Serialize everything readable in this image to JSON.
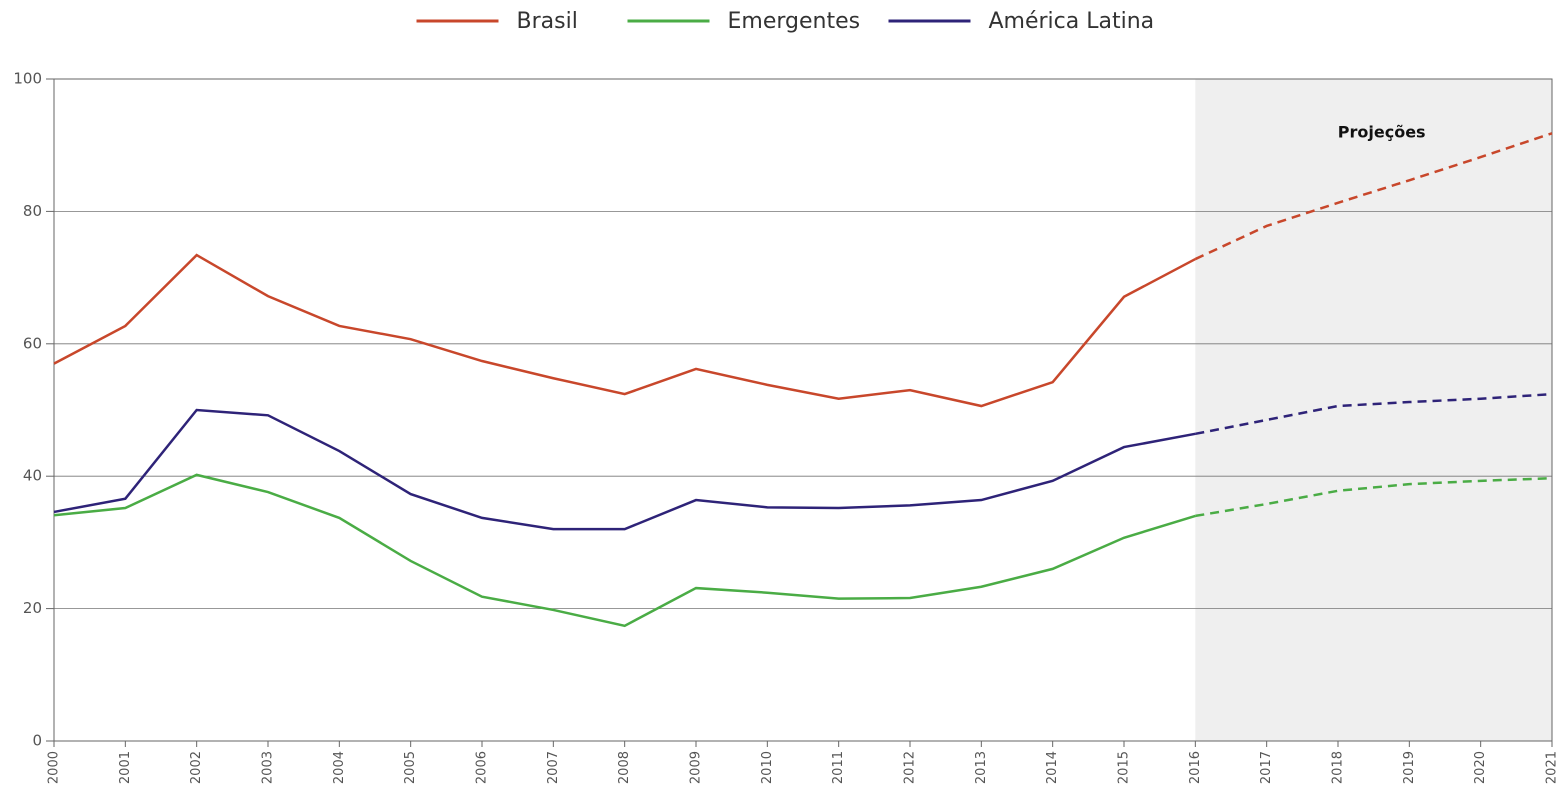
{
  "chart_data": {
    "type": "line",
    "x": [
      2000,
      2001,
      2002,
      2003,
      2004,
      2005,
      2006,
      2007,
      2008,
      2009,
      2010,
      2011,
      2012,
      2013,
      2014,
      2015,
      2016,
      2017,
      2018,
      2019,
      2020,
      2021
    ],
    "xlim": [
      2000,
      2021
    ],
    "xticks": [
      2000,
      2001,
      2002,
      2003,
      2004,
      2005,
      2006,
      2007,
      2008,
      2009,
      2010,
      2011,
      2012,
      2013,
      2014,
      2015,
      2016,
      2017,
      2018,
      2019,
      2020,
      2021
    ],
    "ylim": [
      0,
      100
    ],
    "yticks": [
      0,
      20,
      40,
      60,
      80,
      100
    ],
    "grid": true,
    "legend": "top",
    "projection": {
      "label": "Projeções",
      "from": 2016,
      "to": 2021,
      "color": "#efefef"
    },
    "series": [
      {
        "name": "Brasil",
        "color": "#c8472b",
        "values": [
          57.0,
          62.7,
          73.4,
          67.2,
          62.7,
          60.7,
          57.4,
          54.8,
          52.4,
          56.2,
          53.8,
          51.7,
          53.0,
          50.6,
          54.2,
          67.1,
          72.8,
          77.8,
          81.3,
          84.7,
          88.2,
          91.8
        ]
      },
      {
        "name": "Emergentes",
        "color": "#4aac45",
        "values": [
          34.1,
          35.2,
          40.2,
          37.6,
          33.7,
          27.2,
          21.8,
          19.8,
          17.4,
          23.1,
          22.4,
          21.5,
          21.6,
          23.3,
          26.0,
          30.7,
          34.0,
          35.8,
          37.8,
          38.8,
          39.3,
          39.7
        ]
      },
      {
        "name": "América Latina",
        "color": "#2e2378",
        "values": [
          34.6,
          36.6,
          50.0,
          49.2,
          43.8,
          37.3,
          33.7,
          32.0,
          32.0,
          36.4,
          35.3,
          35.2,
          35.6,
          36.4,
          39.3,
          44.4,
          46.4,
          48.5,
          50.6,
          51.2,
          51.7,
          52.4
        ]
      }
    ]
  }
}
